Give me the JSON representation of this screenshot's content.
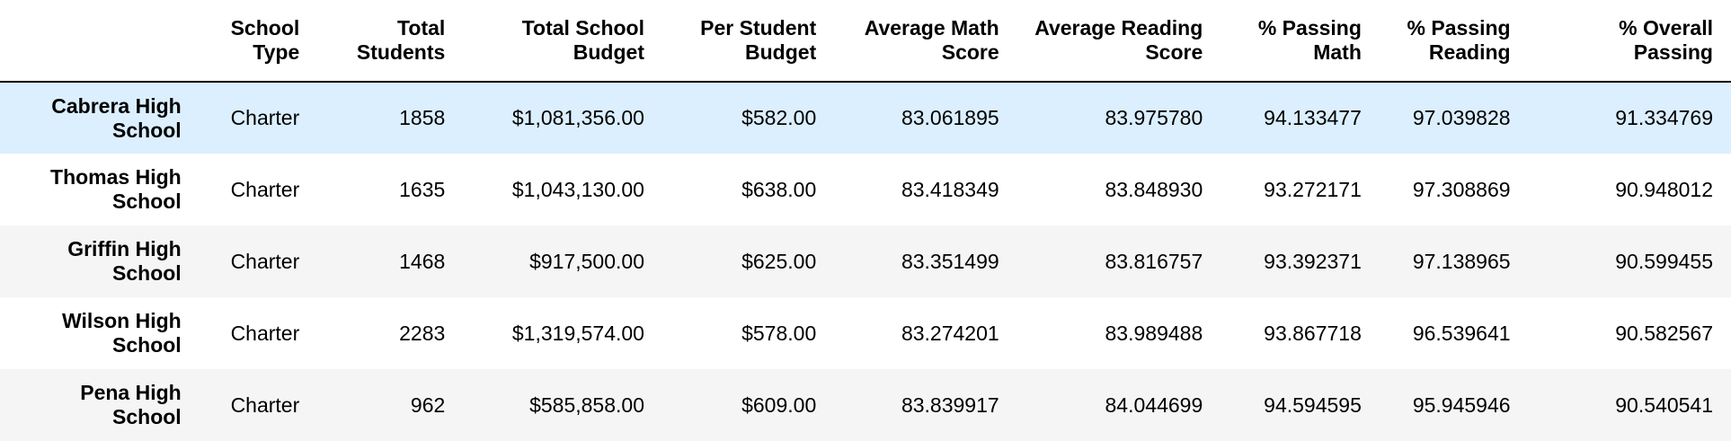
{
  "table": {
    "corner_label": "",
    "columns": [
      {
        "line1": "School",
        "line2": "Type"
      },
      {
        "line1": "Total",
        "line2": "Students"
      },
      {
        "line1": "Total School",
        "line2": "Budget"
      },
      {
        "line1": "Per Student",
        "line2": "Budget"
      },
      {
        "line1": "Average Math",
        "line2": "Score"
      },
      {
        "line1": "Average Reading",
        "line2": "Score"
      },
      {
        "line1": "% Passing",
        "line2": "Math"
      },
      {
        "line1": "% Passing",
        "line2": "Reading"
      },
      {
        "line1": "% Overall",
        "line2": "Passing"
      }
    ],
    "rows": [
      {
        "index_line1": "Cabrera High",
        "index_line2": "School",
        "cells": [
          "Charter",
          "1858",
          "$1,081,356.00",
          "$582.00",
          "83.061895",
          "83.975780",
          "94.133477",
          "97.039828",
          "91.334769"
        ]
      },
      {
        "index_line1": "Thomas High",
        "index_line2": "School",
        "cells": [
          "Charter",
          "1635",
          "$1,043,130.00",
          "$638.00",
          "83.418349",
          "83.848930",
          "93.272171",
          "97.308869",
          "90.948012"
        ]
      },
      {
        "index_line1": "Griffin High",
        "index_line2": "School",
        "cells": [
          "Charter",
          "1468",
          "$917,500.00",
          "$625.00",
          "83.351499",
          "83.816757",
          "93.392371",
          "97.138965",
          "90.599455"
        ]
      },
      {
        "index_line1": "Wilson High",
        "index_line2": "School",
        "cells": [
          "Charter",
          "2283",
          "$1,319,574.00",
          "$578.00",
          "83.274201",
          "83.989488",
          "93.867718",
          "96.539641",
          "90.582567"
        ]
      },
      {
        "index_line1": "Pena High",
        "index_line2": "School",
        "cells": [
          "Charter",
          "962",
          "$585,858.00",
          "$609.00",
          "83.839917",
          "84.044699",
          "94.594595",
          "95.945946",
          "90.540541"
        ]
      }
    ]
  },
  "colors": {
    "row_stripe": "#f5f5f5",
    "row_hover": "#dcefff",
    "header_rule": "#000000"
  }
}
